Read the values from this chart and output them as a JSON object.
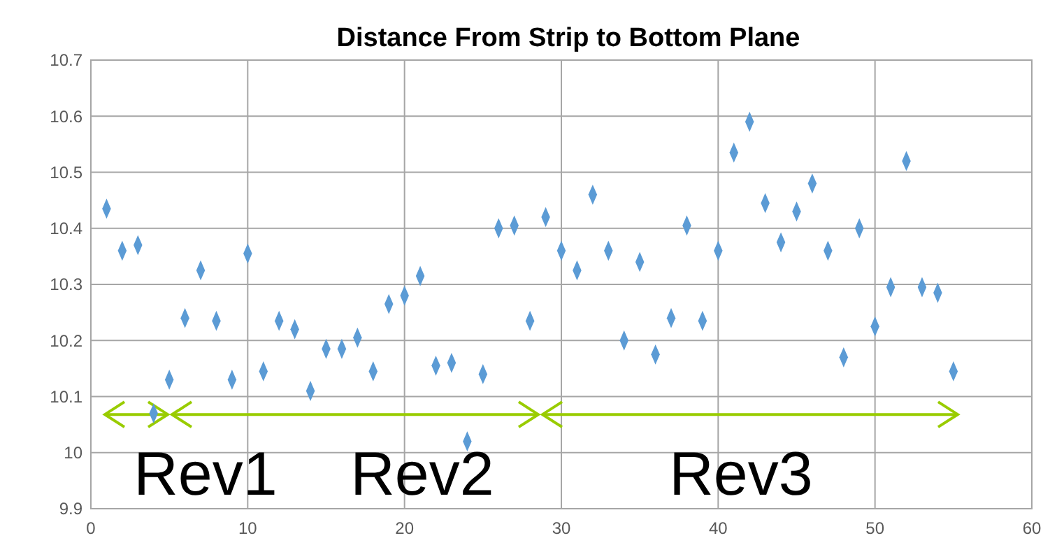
{
  "chart_data": {
    "type": "scatter",
    "title": "Distance From Strip to Bottom Plane",
    "x": [
      1,
      2,
      3,
      4,
      5,
      6,
      7,
      8,
      9,
      10,
      11,
      12,
      13,
      14,
      15,
      16,
      17,
      18,
      19,
      20,
      21,
      22,
      23,
      24,
      25,
      26,
      27,
      28,
      29,
      30,
      31,
      32,
      33,
      34,
      35,
      36,
      37,
      38,
      39,
      40,
      41,
      42,
      43,
      44,
      45,
      46,
      47,
      48,
      49,
      50,
      51,
      52,
      53,
      54,
      55
    ],
    "series": [
      {
        "color": "#5b9bd5",
        "values": [
          10.435,
          10.36,
          10.37,
          10.07,
          10.13,
          10.24,
          10.325,
          10.235,
          10.13,
          10.355,
          10.145,
          10.235,
          10.22,
          10.11,
          10.185,
          10.185,
          10.205,
          10.145,
          10.265,
          10.28,
          10.315,
          10.155,
          10.16,
          10.02,
          10.14,
          10.4,
          10.405,
          10.235,
          10.42,
          10.36,
          10.325,
          10.46,
          10.36,
          10.2,
          10.34,
          10.175,
          10.24,
          10.405,
          10.235,
          10.36,
          10.535,
          10.59,
          10.445,
          10.375,
          10.43,
          10.48,
          10.36,
          10.17,
          10.4,
          10.225,
          10.295,
          10.52,
          10.295,
          10.285,
          10.145
        ]
      }
    ],
    "xlim": [
      0,
      60
    ],
    "xticks": [
      0,
      10,
      20,
      30,
      40,
      50,
      60
    ],
    "ylim": [
      9.9,
      10.7
    ],
    "yticks": [
      9.9,
      10,
      10.1,
      10.2,
      10.3,
      10.4,
      10.5,
      10.6,
      10.7
    ],
    "grid": true,
    "marker": "diamond",
    "annotations": [
      "Rev1",
      "Rev2",
      "Rev3"
    ]
  }
}
